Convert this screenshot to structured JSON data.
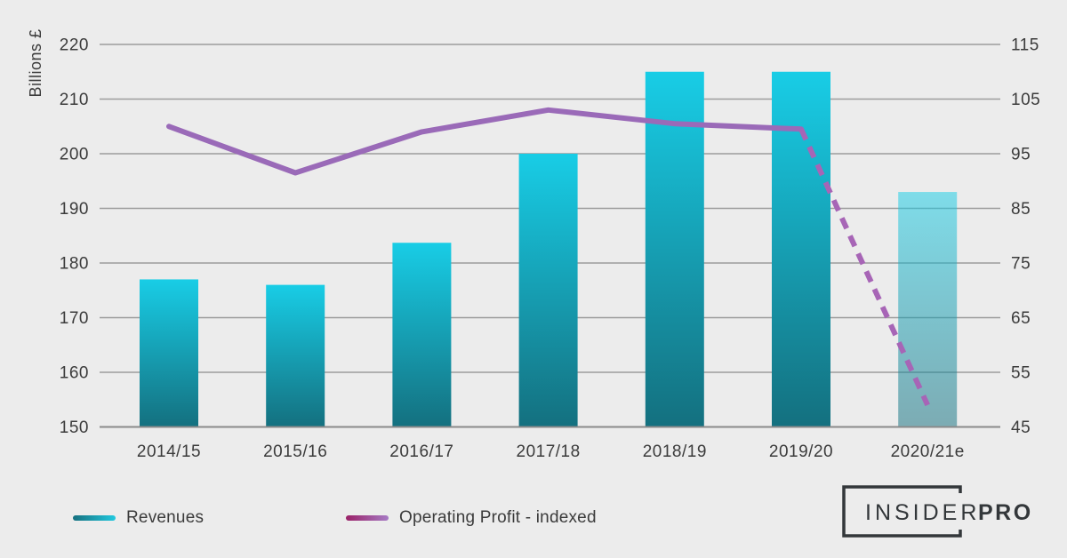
{
  "chart_data": {
    "type": "combo-bar-line",
    "categories": [
      "2014/15",
      "2015/16",
      "2016/17",
      "2017/18",
      "2018/19",
      "2019/20",
      "2020/21e"
    ],
    "series": [
      {
        "name": "Revenues",
        "type": "bar",
        "axis": "left",
        "values": [
          177,
          176,
          183.7,
          200,
          215,
          215,
          193
        ],
        "estimate_index": 6
      },
      {
        "name": "Operating Profit - indexed",
        "type": "line",
        "axis": "right",
        "values": [
          100,
          91.5,
          99,
          103,
          100.5,
          99.5,
          49
        ],
        "dashed_from_index": 5
      }
    ],
    "left_axis": {
      "title": "Billions £",
      "min": 150,
      "max": 220,
      "ticks": [
        220,
        210,
        200,
        190,
        180,
        170,
        160,
        150
      ]
    },
    "right_axis": {
      "min": 45,
      "max": 115,
      "ticks": [
        115,
        105,
        95,
        85,
        75,
        65,
        55,
        45
      ]
    },
    "grid": true,
    "legend_position": "bottom-left"
  },
  "colors": {
    "background": "#ECECEC",
    "grid": "#9C9C9C",
    "axis_line": "#8A8A8A",
    "text": "#3B3B3B",
    "bar_top": "#18CDE6",
    "bar_bottom": "#14707F",
    "bar_estimate_opacity": 0.52,
    "line_solid": "#9A6AB8",
    "line_dashed": "#A765B6",
    "legend_bar_swatch_start": "#16707F",
    "legend_bar_swatch_end": "#22C9DF",
    "legend_line_swatch_start": "#9A2167",
    "legend_line_swatch_end": "#A77BC5",
    "logo": "#33373A"
  },
  "legend": {
    "items": [
      {
        "label": "Revenues"
      },
      {
        "label": "Operating Profit - indexed"
      }
    ]
  },
  "logo": {
    "name_light": "INSIDER",
    "name_bold": "PRO"
  }
}
